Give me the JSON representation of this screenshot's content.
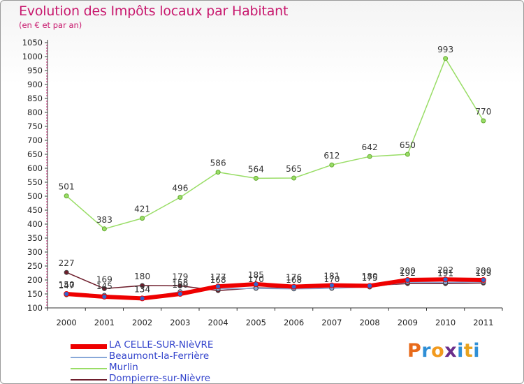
{
  "header": {
    "title": "Evolution des Impôts locaux par Habitant",
    "subtitle": "(en € et par an)"
  },
  "logo": {
    "text": "Proxiti",
    "colors": [
      "#e86a1a",
      "#2f8fd6",
      "#f29a1e",
      "#6a2d8a",
      "#2f8fd6",
      "#e8a21e",
      "#2f8fd6"
    ]
  },
  "chart_data": {
    "type": "line",
    "title": "Evolution des Impôts locaux par Habitant",
    "subtitle": "(en € et par an)",
    "xlabel": "",
    "ylabel": "",
    "categories": [
      "2000",
      "2001",
      "2002",
      "2003",
      "2004",
      "2005",
      "2006",
      "2007",
      "2008",
      "2009",
      "2010",
      "2011"
    ],
    "ylim": [
      100,
      1050
    ],
    "yticks": [
      100,
      150,
      200,
      250,
      300,
      350,
      400,
      450,
      500,
      550,
      600,
      650,
      700,
      750,
      800,
      850,
      900,
      950,
      1000,
      1050
    ],
    "grid": false,
    "legend_position": "bottom-left",
    "series": [
      {
        "name": "Murlin",
        "color": "#99dd66",
        "values": [
          501,
          383,
          421,
          496,
          586,
          564,
          565,
          612,
          642,
          650,
          993,
          770
        ],
        "labels": [
          "501",
          "383",
          "421",
          "496",
          "586",
          "564",
          "565",
          "612",
          "642",
          "650",
          "993",
          "770"
        ]
      },
      {
        "name": "Dompierre-sur-Nièvre",
        "color": "#6e1e2c",
        "values": [
          227,
          169,
          180,
          179,
          162,
          172,
          170,
          175,
          180,
          187,
          187,
          189
        ],
        "labels": [
          "227",
          "169",
          "180",
          "179",
          "",
          "",
          "",
          "",
          "180",
          "",
          "",
          ""
        ]
      },
      {
        "name": "Beaumont-la-Ferrière",
        "color": "#88a8d8",
        "values": [
          147,
          145,
          134,
          158,
          168,
          170,
          168,
          170,
          175,
          192,
          191,
          193
        ],
        "labels": [
          "147",
          "145",
          "134",
          "158",
          "168",
          "170",
          "168",
          "170",
          "175",
          "192",
          "191",
          "193"
        ]
      },
      {
        "name": "LA CELLE-SUR-NIèVRE",
        "color": "#ee0000",
        "values": [
          150,
          140,
          134,
          150,
          177,
          185,
          176,
          181,
          179,
          200,
          202,
          200
        ],
        "labels": [
          "150",
          "",
          "134",
          "150",
          "177",
          "185",
          "176",
          "181",
          "",
          "200",
          "202",
          "200"
        ]
      }
    ]
  },
  "legend": {
    "items": [
      {
        "label": "LA CELLE-SUR-NIèVRE",
        "color": "#ee0000",
        "thickness": 7
      },
      {
        "label": "Beaumont-la-Ferrière",
        "color": "#88a8d8",
        "thickness": 2
      },
      {
        "label": "Murlin",
        "color": "#99dd66",
        "thickness": 2
      },
      {
        "label": "Dompierre-sur-Nièvre",
        "color": "#6e1e2c",
        "thickness": 2
      }
    ]
  }
}
